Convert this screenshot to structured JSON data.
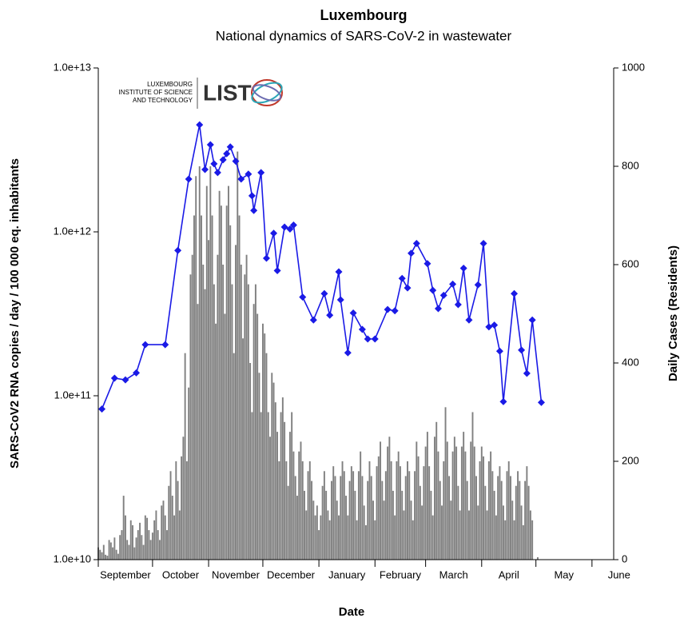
{
  "chart_data": {
    "type": "combo",
    "title": "Luxembourg",
    "subtitle": "National dynamics of SARS-CoV-2 in wastewater",
    "x_label": "Date",
    "y_label": "SARS-CoV2 RNA copies / day  / 100 000 eq. inhabitants",
    "y2_label": "Daily Cases (Residents)",
    "logo": {
      "lines": [
        "LUXEMBOURG",
        "INSTITUTE OF SCIENCE",
        "AND TECHNOLOGY"
      ],
      "name": "LIST"
    },
    "xlim": [
      0,
      285
    ],
    "xticks": [
      {
        "value": 0,
        "label": "September"
      },
      {
        "value": 30,
        "label": "October"
      },
      {
        "value": 61,
        "label": "November"
      },
      {
        "value": 91,
        "label": "December"
      },
      {
        "value": 122,
        "label": "January"
      },
      {
        "value": 153,
        "label": "February"
      },
      {
        "value": 181,
        "label": "March"
      },
      {
        "value": 212,
        "label": "April"
      },
      {
        "value": 242,
        "label": "May"
      },
      {
        "value": 273,
        "label": "June"
      }
    ],
    "ylog": true,
    "ylim": [
      10000000000,
      10000000000000
    ],
    "yticks": [
      {
        "value": 10000000000,
        "label": "1.0e+10"
      },
      {
        "value": 100000000000,
        "label": "1.0e+11"
      },
      {
        "value": 1000000000000,
        "label": "1.0e+12"
      },
      {
        "value": 10000000000000,
        "label": "1.0e+13"
      }
    ],
    "y2lim": [
      0,
      1000
    ],
    "y2ticks": [
      0,
      200,
      400,
      600,
      800,
      1000
    ],
    "series": [
      {
        "type": "bar",
        "axis": "y2",
        "color": "#808080",
        "x": [
          0,
          1,
          2,
          3,
          4,
          5,
          6,
          7,
          8,
          9,
          10,
          11,
          12,
          13,
          14,
          15,
          16,
          17,
          18,
          19,
          20,
          21,
          22,
          23,
          24,
          25,
          26,
          27,
          28,
          29,
          30,
          31,
          32,
          33,
          34,
          35,
          36,
          37,
          38,
          39,
          40,
          41,
          42,
          43,
          44,
          45,
          46,
          47,
          48,
          49,
          50,
          51,
          52,
          53,
          54,
          55,
          56,
          57,
          58,
          59,
          60,
          61,
          62,
          63,
          64,
          65,
          66,
          67,
          68,
          69,
          70,
          71,
          72,
          73,
          74,
          75,
          76,
          77,
          78,
          79,
          80,
          81,
          82,
          83,
          84,
          85,
          86,
          87,
          88,
          89,
          90,
          91,
          92,
          93,
          94,
          95,
          96,
          97,
          98,
          99,
          100,
          101,
          102,
          103,
          104,
          105,
          106,
          107,
          108,
          109,
          110,
          111,
          112,
          113,
          114,
          115,
          116,
          117,
          118,
          119,
          120,
          121,
          122,
          123,
          124,
          125,
          126,
          127,
          128,
          129,
          130,
          131,
          132,
          133,
          134,
          135,
          136,
          137,
          138,
          139,
          140,
          141,
          142,
          143,
          144,
          145,
          146,
          147,
          148,
          149,
          150,
          151,
          152,
          153,
          154,
          155,
          156,
          157,
          158,
          159,
          160,
          161,
          162,
          163,
          164,
          165,
          166,
          167,
          168,
          169,
          170,
          171,
          172,
          173,
          174,
          175,
          176,
          177,
          178,
          179,
          180,
          181,
          182,
          183,
          184,
          185,
          186,
          187,
          188,
          189,
          190,
          191,
          192,
          193,
          194,
          195,
          196,
          197,
          198,
          199,
          200,
          201,
          202,
          203,
          204,
          205,
          206,
          207,
          208,
          209,
          210,
          211,
          212,
          213,
          214,
          215,
          216,
          217,
          218,
          219,
          220,
          221,
          222,
          223,
          224,
          225,
          226,
          227,
          228,
          229,
          230,
          231,
          232,
          233,
          234,
          235,
          236,
          237,
          238,
          239,
          240,
          243
        ],
        "values": [
          25,
          20,
          15,
          30,
          10,
          8,
          40,
          35,
          25,
          45,
          20,
          12,
          50,
          60,
          130,
          90,
          40,
          30,
          80,
          70,
          25,
          45,
          60,
          75,
          50,
          30,
          90,
          85,
          60,
          40,
          55,
          80,
          100,
          60,
          40,
          110,
          120,
          90,
          60,
          150,
          180,
          130,
          90,
          200,
          160,
          100,
          210,
          250,
          420,
          200,
          350,
          580,
          620,
          700,
          780,
          520,
          800,
          700,
          600,
          550,
          760,
          650,
          800,
          700,
          560,
          480,
          620,
          750,
          720,
          600,
          500,
          720,
          760,
          680,
          560,
          420,
          640,
          830,
          700,
          600,
          450,
          580,
          620,
          560,
          400,
          300,
          520,
          560,
          500,
          380,
          300,
          480,
          460,
          420,
          300,
          250,
          380,
          360,
          320,
          260,
          200,
          300,
          330,
          280,
          200,
          150,
          260,
          300,
          220,
          170,
          130,
          220,
          240,
          200,
          140,
          100,
          180,
          200,
          160,
          120,
          90,
          110,
          60,
          90,
          150,
          180,
          140,
          100,
          80,
          160,
          190,
          170,
          120,
          90,
          170,
          200,
          180,
          130,
          90,
          160,
          190,
          180,
          140,
          80,
          180,
          220,
          170,
          110,
          70,
          160,
          200,
          170,
          120,
          80,
          190,
          210,
          240,
          160,
          120,
          180,
          230,
          250,
          200,
          140,
          90,
          200,
          220,
          190,
          140,
          100,
          170,
          200,
          180,
          120,
          80,
          180,
          240,
          210,
          150,
          110,
          190,
          230,
          260,
          190,
          140,
          90,
          250,
          280,
          220,
          160,
          110,
          200,
          310,
          240,
          170,
          120,
          220,
          250,
          230,
          150,
          100,
          230,
          260,
          220,
          160,
          100,
          240,
          300,
          230,
          170,
          110,
          200,
          230,
          210,
          150,
          100,
          200,
          220,
          180,
          140,
          90,
          170,
          190,
          160,
          110,
          80,
          180,
          200,
          170,
          120,
          80,
          150,
          180,
          160,
          110,
          70,
          160,
          190,
          150,
          100,
          80,
          5
        ]
      },
      {
        "type": "line",
        "axis": "y",
        "color": "#1a1ae6",
        "x": [
          2,
          9,
          15,
          21,
          26,
          37,
          44,
          50,
          56,
          59,
          62,
          64,
          66,
          69,
          71,
          73,
          76,
          79,
          83,
          85,
          86,
          90,
          93,
          97,
          99,
          103,
          106,
          108,
          113,
          119,
          125,
          128,
          133,
          134,
          138,
          141,
          146,
          149,
          153,
          160,
          164,
          168,
          171,
          173,
          176,
          182,
          185,
          188,
          191,
          196,
          199,
          202,
          205,
          210,
          213,
          216,
          219,
          222,
          224,
          230,
          234,
          237,
          240,
          245
        ],
        "values": [
          83000000000,
          128000000000,
          125000000000,
          138000000000,
          205000000000,
          205000000000,
          770000000000,
          2100000000000,
          4500000000000,
          2400000000000,
          3400000000000,
          2600000000000,
          2300000000000,
          2750000000000,
          3000000000000,
          3300000000000,
          2700000000000,
          2100000000000,
          2250000000000,
          1660000000000,
          1350000000000,
          2300000000000,
          690000000000,
          980000000000,
          580000000000,
          1070000000000,
          1040000000000,
          1100000000000,
          400000000000,
          290000000000,
          420000000000,
          310000000000,
          570000000000,
          385000000000,
          183000000000,
          320000000000,
          254000000000,
          222000000000,
          222000000000,
          336000000000,
          330000000000,
          520000000000,
          455000000000,
          740000000000,
          850000000000,
          640000000000,
          440000000000,
          340000000000,
          410000000000,
          480000000000,
          360000000000,
          600000000000,
          290000000000,
          475000000000,
          850000000000,
          263000000000,
          270000000000,
          187000000000,
          92000000000,
          420000000000,
          190000000000,
          137000000000,
          290000000000,
          91000000000
        ]
      }
    ]
  }
}
